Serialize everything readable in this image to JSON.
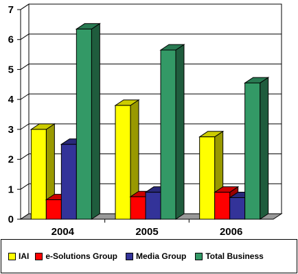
{
  "chart_data": {
    "type": "bar",
    "categories": [
      "2004",
      "2005",
      "2006"
    ],
    "series": [
      {
        "name": "IAI",
        "color": "#ffff00",
        "values": [
          3.0,
          3.8,
          2.75
        ]
      },
      {
        "name": "e-Solutions Group",
        "color": "#ff0000",
        "values": [
          0.65,
          0.75,
          0.9
        ]
      },
      {
        "name": "Media Group",
        "color": "#333399",
        "values": [
          2.5,
          0.9,
          0.72
        ]
      },
      {
        "name": "Total Business",
        "color": "#339966",
        "values": [
          6.35,
          5.65,
          4.55
        ]
      }
    ],
    "yticks": [
      "0",
      "1",
      "2",
      "3",
      "4",
      "5",
      "6",
      "7"
    ],
    "ylim": [
      0,
      7
    ],
    "grid": true,
    "legend": "bottom",
    "title": "",
    "xlabel": "",
    "ylabel": ""
  }
}
